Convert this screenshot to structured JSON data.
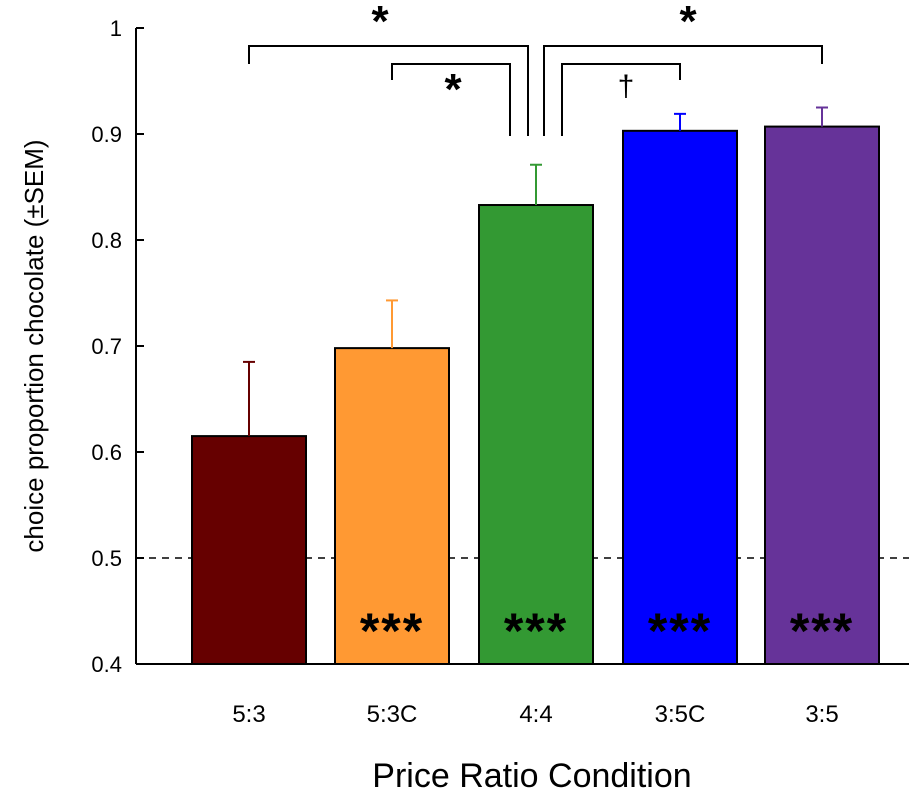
{
  "chart_data": {
    "type": "bar",
    "categories": [
      "5:3",
      "5:3C",
      "4:4",
      "3:5C",
      "3:5"
    ],
    "values": [
      0.615,
      0.698,
      0.833,
      0.903,
      0.907
    ],
    "errors": [
      0.07,
      0.045,
      0.038,
      0.016,
      0.018
    ],
    "colors": [
      "#660000",
      "#ff9933",
      "#339933",
      "#0000ff",
      "#663399"
    ],
    "ylim": [
      0.4,
      1.0
    ],
    "yticks": [
      "0.4",
      "0.5",
      "0.6",
      "0.7",
      "0.8",
      "0.9",
      "1"
    ],
    "ylabel": "choice proportion chocolate (±SEM)",
    "xlabel": "Price Ratio Condition",
    "reference_line": 0.5,
    "in_bar_significance": [
      "",
      "***",
      "***",
      "***",
      "***"
    ],
    "comparisons": [
      {
        "from": 0,
        "to": 2,
        "label": "*"
      },
      {
        "from": 1,
        "to": 2,
        "label": "*"
      },
      {
        "from": 2,
        "to": 4,
        "label": "*"
      },
      {
        "from": 2,
        "to": 3,
        "label": "†"
      }
    ]
  }
}
